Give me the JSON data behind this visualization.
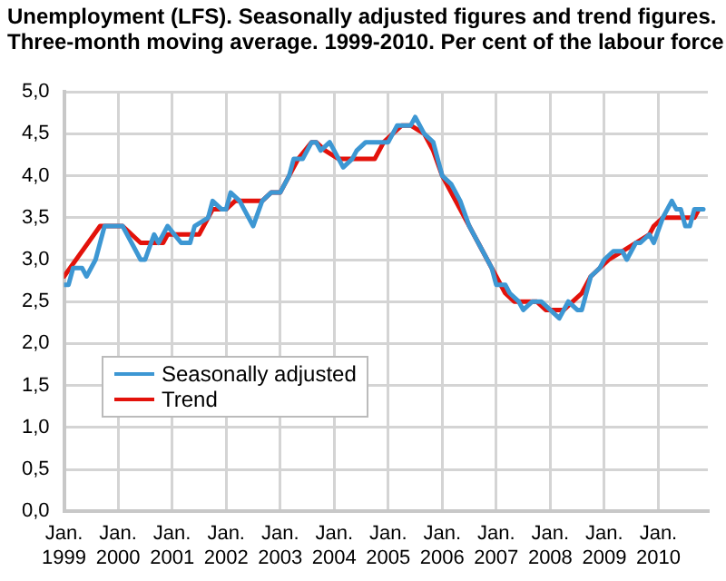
{
  "chart_data": {
    "type": "line",
    "title": "Unemployment (LFS). Seasonally adjusted figures and trend figures.",
    "subtitle": "Three-month moving average. 1999-2010. Per cent of the labour force",
    "xlim": [
      "1999-01",
      "2010-12"
    ],
    "xticks": [
      {
        "value": "1999-01",
        "label": "Jan. 1999"
      },
      {
        "value": "2000-01",
        "label": "Jan. 2000"
      },
      {
        "value": "2001-01",
        "label": "Jan. 2001"
      },
      {
        "value": "2002-01",
        "label": "Jan. 2002"
      },
      {
        "value": "2003-01",
        "label": "Jan. 2003"
      },
      {
        "value": "2004-01",
        "label": "Jan. 2004"
      },
      {
        "value": "2005-01",
        "label": "Jan. 2005"
      },
      {
        "value": "2006-01",
        "label": "Jan. 2006"
      },
      {
        "value": "2007-01",
        "label": "Jan. 2007"
      },
      {
        "value": "2008-01",
        "label": "Jan. 2008"
      },
      {
        "value": "2009-01",
        "label": "Jan. 2009"
      },
      {
        "value": "2010-01",
        "label": "Jan. 2010"
      }
    ],
    "ylim": [
      0,
      5
    ],
    "yticks": [
      {
        "value": 0,
        "label": "0,0"
      },
      {
        "value": 0.5,
        "label": "0,5"
      },
      {
        "value": 1,
        "label": "1,0"
      },
      {
        "value": 1.5,
        "label": "1,5"
      },
      {
        "value": 2,
        "label": "2,0"
      },
      {
        "value": 2.5,
        "label": "2,5"
      },
      {
        "value": 3,
        "label": "3,0"
      },
      {
        "value": 3.5,
        "label": "3,5"
      },
      {
        "value": 4,
        "label": "4,0"
      },
      {
        "value": 4.5,
        "label": "4,5"
      },
      {
        "value": 5,
        "label": "5,0"
      }
    ],
    "grid": true,
    "legend": "bottom left",
    "series": [
      {
        "name": "Trend",
        "color": "#e3120b",
        "x": [
          "1999-01",
          "1999-09",
          "2000-02",
          "2000-04",
          "2000-06",
          "2000-11",
          "2000-12",
          "2001-07",
          "2001-08",
          "2001-10",
          "2002-01",
          "2002-03",
          "2002-09",
          "2002-11",
          "2003-01",
          "2003-03",
          "2003-05",
          "2003-08",
          "2003-09",
          "2003-11",
          "2004-02",
          "2004-10",
          "2004-12",
          "2005-02",
          "2005-04",
          "2005-06",
          "2005-09",
          "2005-11",
          "2006-01",
          "2006-03",
          "2006-06",
          "2006-09",
          "2006-12",
          "2007-03",
          "2007-05",
          "2007-10",
          "2007-12",
          "2008-04",
          "2008-06",
          "2008-08",
          "2008-10",
          "2008-12",
          "2009-02",
          "2009-05",
          "2009-08",
          "2009-11",
          "2009-12",
          "2010-02",
          "2010-09",
          "2010-10"
        ],
        "values": [
          2.8,
          3.4,
          3.4,
          3.3,
          3.2,
          3.2,
          3.3,
          3.3,
          3.4,
          3.6,
          3.6,
          3.7,
          3.7,
          3.8,
          3.8,
          4.0,
          4.2,
          4.4,
          4.4,
          4.3,
          4.2,
          4.2,
          4.4,
          4.5,
          4.6,
          4.6,
          4.5,
          4.3,
          4.0,
          3.8,
          3.5,
          3.2,
          2.9,
          2.6,
          2.5,
          2.5,
          2.4,
          2.4,
          2.5,
          2.6,
          2.8,
          2.9,
          3.0,
          3.1,
          3.2,
          3.3,
          3.4,
          3.5,
          3.5,
          3.6
        ]
      },
      {
        "name": "Seasonally adjusted",
        "color": "#3d97d3",
        "x": [
          "1999-01",
          "1999-02",
          "1999-03",
          "1999-05",
          "1999-06",
          "1999-08",
          "1999-10",
          "2000-02",
          "2000-04",
          "2000-06",
          "2000-07",
          "2000-09",
          "2000-10",
          "2000-12",
          "2001-03",
          "2001-05",
          "2001-06",
          "2001-09",
          "2001-10",
          "2001-12",
          "2002-01",
          "2002-02",
          "2002-04",
          "2002-05",
          "2002-07",
          "2002-09",
          "2002-11",
          "2003-01",
          "2003-03",
          "2003-04",
          "2003-06",
          "2003-08",
          "2003-09",
          "2003-10",
          "2003-12",
          "2004-02",
          "2004-03",
          "2004-05",
          "2004-06",
          "2004-08",
          "2005-01",
          "2005-03",
          "2005-06",
          "2005-07",
          "2005-09",
          "2005-11",
          "2006-01",
          "2006-03",
          "2006-05",
          "2006-07",
          "2006-10",
          "2006-12",
          "2007-01",
          "2007-03",
          "2007-04",
          "2007-06",
          "2007-07",
          "2007-09",
          "2007-11",
          "2008-01",
          "2008-03",
          "2008-05",
          "2008-07",
          "2008-08",
          "2008-10",
          "2008-12",
          "2009-01",
          "2009-03",
          "2009-05",
          "2009-06",
          "2009-08",
          "2009-09",
          "2009-11",
          "2009-12",
          "2010-02",
          "2010-04",
          "2010-05",
          "2010-06",
          "2010-07",
          "2010-08",
          "2010-09",
          "2010-11"
        ],
        "values": [
          2.7,
          2.7,
          2.9,
          2.9,
          2.8,
          3.0,
          3.4,
          3.4,
          3.2,
          3.0,
          3.0,
          3.3,
          3.2,
          3.4,
          3.2,
          3.2,
          3.4,
          3.5,
          3.7,
          3.6,
          3.6,
          3.8,
          3.7,
          3.6,
          3.4,
          3.7,
          3.8,
          3.8,
          4.0,
          4.2,
          4.2,
          4.4,
          4.4,
          4.3,
          4.4,
          4.2,
          4.1,
          4.2,
          4.3,
          4.4,
          4.4,
          4.6,
          4.6,
          4.7,
          4.5,
          4.4,
          4.0,
          3.9,
          3.7,
          3.4,
          3.1,
          2.9,
          2.7,
          2.7,
          2.6,
          2.5,
          2.4,
          2.5,
          2.5,
          2.4,
          2.3,
          2.5,
          2.4,
          2.4,
          2.8,
          2.9,
          3.0,
          3.1,
          3.1,
          3.0,
          3.2,
          3.2,
          3.3,
          3.2,
          3.5,
          3.7,
          3.6,
          3.6,
          3.4,
          3.4,
          3.6,
          3.6
        ]
      }
    ]
  }
}
